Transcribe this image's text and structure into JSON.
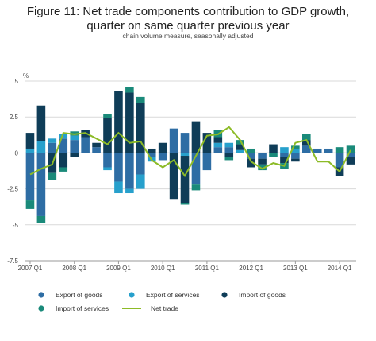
{
  "chart_data": {
    "type": "bar",
    "title": "Figure 11: Net trade components contribution to GDP growth, quarter on same quarter previous year",
    "subtitle": "chain volume measure, seasonally adjusted",
    "ylabel": "%",
    "ylim": [
      -7.5,
      5
    ],
    "yticks": [
      5,
      2.5,
      0,
      -2.5,
      -5,
      -7.5
    ],
    "ytick_labels": [
      "5",
      "2.5",
      "0",
      "-2.5",
      "-5",
      "-7.5"
    ],
    "xtick_labels": [
      "2007 Q1",
      "2008 Q1",
      "2009 Q1",
      "2010 Q1",
      "2011 Q1",
      "2012 Q1",
      "2013 Q1",
      "2014 Q1"
    ],
    "categories": [
      "2007 Q1",
      "2007 Q2",
      "2007 Q3",
      "2007 Q4",
      "2008 Q1",
      "2008 Q2",
      "2008 Q3",
      "2008 Q4",
      "2009 Q1",
      "2009 Q2",
      "2009 Q3",
      "2009 Q4",
      "2010 Q1",
      "2010 Q2",
      "2010 Q3",
      "2010 Q4",
      "2011 Q1",
      "2011 Q2",
      "2011 Q3",
      "2011 Q4",
      "2012 Q1",
      "2012 Q2",
      "2012 Q3",
      "2012 Q4",
      "2013 Q1",
      "2013 Q2",
      "2013 Q3",
      "2013 Q4",
      "2014 Q1",
      "2014 Q2"
    ],
    "series": [
      {
        "name": "Export of goods",
        "color": "#2e6da4",
        "values": [
          -3.3,
          -4.4,
          0.7,
          1.0,
          0.9,
          1.1,
          0.4,
          -1.0,
          -2.0,
          -2.5,
          -1.5,
          -0.3,
          -0.5,
          1.7,
          1.4,
          -2.2,
          -1.2,
          0.4,
          0.4,
          0.0,
          -0.4,
          -0.4,
          0.0,
          -0.3,
          -0.4,
          0.5,
          0.3,
          0.3,
          -1.0,
          -0.3
        ]
      },
      {
        "name": "Export of services",
        "color": "#27a0cc",
        "values": [
          0.3,
          0.8,
          0.3,
          0.3,
          0.3,
          0.0,
          0.0,
          -0.2,
          -0.8,
          -0.3,
          -1.0,
          -0.3,
          0.0,
          0.0,
          -0.2,
          0.0,
          0.0,
          0.3,
          0.3,
          0.2,
          0.0,
          0.0,
          0.0,
          0.4,
          0.3,
          0.0,
          0.0,
          0.0,
          0.0,
          0.0
        ]
      },
      {
        "name": "Import of goods",
        "color": "#0f3d58",
        "values": [
          1.1,
          2.5,
          -1.4,
          -1.0,
          -0.3,
          0.5,
          0.3,
          2.4,
          4.3,
          4.2,
          3.5,
          0.3,
          0.7,
          -3.2,
          -3.3,
          2.2,
          1.4,
          0.4,
          -0.3,
          0.4,
          -0.6,
          -0.4,
          0.6,
          -0.4,
          -0.2,
          0.4,
          0.0,
          0.0,
          -0.6,
          -0.5
        ]
      },
      {
        "name": "Import of services",
        "color": "#1a8a7a",
        "values": [
          -0.6,
          -0.5,
          -0.5,
          -0.3,
          0.3,
          0.0,
          0.0,
          0.3,
          0.0,
          0.4,
          0.4,
          0.0,
          0.0,
          0.0,
          -0.1,
          -0.4,
          0.0,
          0.5,
          -0.2,
          0.3,
          0.3,
          -0.4,
          -0.3,
          -0.4,
          0.2,
          0.4,
          0.0,
          0.0,
          0.4,
          0.5
        ]
      }
    ],
    "line": {
      "name": "Net trade",
      "color": "#8dbb27",
      "values": [
        -1.5,
        -1.1,
        -0.8,
        1.4,
        1.3,
        1.4,
        1.0,
        0.6,
        1.4,
        0.7,
        0.8,
        -0.5,
        -1.0,
        -0.5,
        -1.6,
        -0.2,
        1.2,
        1.3,
        1.8,
        0.9,
        -0.6,
        -1.1,
        -0.7,
        -0.9,
        0.7,
        0.9,
        -0.6,
        -0.6,
        -1.3,
        0.2
      ]
    },
    "legend": [
      "Export of goods",
      "Export of services",
      "Import of goods",
      "Import of services",
      "Net trade"
    ],
    "legend_position": "bottom",
    "grid": true
  }
}
